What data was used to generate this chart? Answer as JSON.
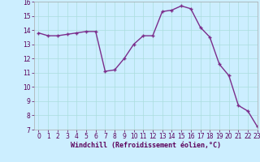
{
  "x": [
    0,
    1,
    2,
    3,
    4,
    5,
    6,
    7,
    8,
    9,
    10,
    11,
    12,
    13,
    14,
    15,
    16,
    17,
    18,
    19,
    20,
    21,
    22,
    23
  ],
  "y": [
    13.8,
    13.6,
    13.6,
    13.7,
    13.8,
    13.9,
    13.9,
    11.1,
    11.2,
    12.0,
    13.0,
    13.6,
    13.6,
    15.3,
    15.4,
    15.7,
    15.5,
    14.2,
    13.5,
    11.6,
    10.8,
    8.7,
    8.3,
    7.2
  ],
  "line_color": "#7B2D8B",
  "marker": "+",
  "marker_size": 3,
  "bg_color": "#cceeff",
  "grid_color": "#aadddd",
  "xlabel": "Windchill (Refroidissement éolien,°C)",
  "xlabel_fontsize": 6.0,
  "ylim": [
    7,
    16
  ],
  "xlim": [
    -0.5,
    23
  ],
  "yticks": [
    7,
    8,
    9,
    10,
    11,
    12,
    13,
    14,
    15,
    16
  ],
  "xticks": [
    0,
    1,
    2,
    3,
    4,
    5,
    6,
    7,
    8,
    9,
    10,
    11,
    12,
    13,
    14,
    15,
    16,
    17,
    18,
    19,
    20,
    21,
    22,
    23
  ],
  "tick_fontsize": 5.5,
  "linewidth": 1.0
}
